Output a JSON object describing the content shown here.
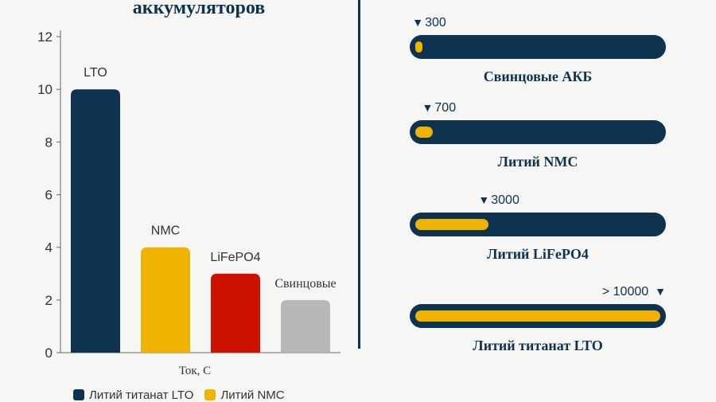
{
  "title": "аккумуляторов",
  "chart_data": [
    {
      "type": "bar",
      "categories": [
        "LTO",
        "NMC",
        "LiFePO4",
        "Свинцовые"
      ],
      "values": [
        10,
        4,
        3,
        2
      ],
      "colors": [
        "#0d3350",
        "#f0b400",
        "#cc1100",
        "#b8b8b8"
      ],
      "xlabel": "Ток, С",
      "ylim": [
        0,
        13
      ],
      "yticks": [
        0,
        2,
        4,
        6,
        8,
        10,
        12
      ],
      "grid": false,
      "legend": {
        "placement": "bottom",
        "entries": [
          {
            "label": "Литий титанат LTO",
            "color": "#0d3350"
          },
          {
            "label": "Литий NMC",
            "color": "#f0b400"
          }
        ]
      }
    },
    {
      "type": "bar",
      "orientation": "horizontal",
      "style": "gauge",
      "xlim": [
        0,
        10000
      ],
      "items": [
        {
          "label": "Свинцовые АКБ",
          "value_label": "300",
          "value": 300
        },
        {
          "label": "Литий NMC",
          "value_label": "700",
          "value": 700
        },
        {
          "label": "Литий LiFePO4",
          "value_label": "3000",
          "value": 3000
        },
        {
          "label": "Литий титанат LTO",
          "value_label": "> 10000",
          "value": 10000
        }
      ]
    }
  ]
}
